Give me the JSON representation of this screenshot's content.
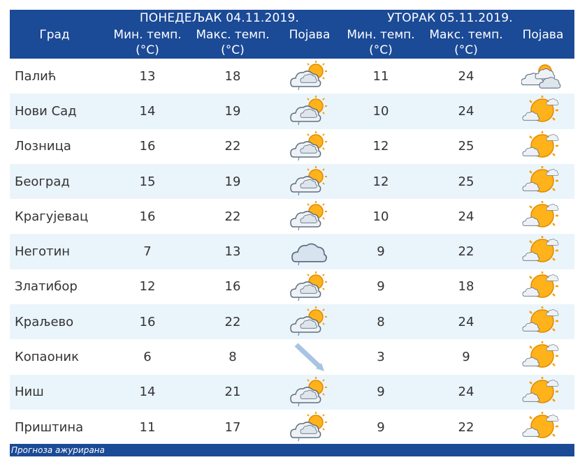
{
  "header": {
    "city_label": "Град",
    "days": [
      {
        "title": "ПОНЕДЕЉАК  04.11.2019.",
        "min_label": "Мин. темп.",
        "max_label": "Макс. темп.",
        "unit": "(°C)",
        "icon_label": "Појава"
      },
      {
        "title": "УТОРАК  05.11.2019.",
        "min_label": "Мин. темп.",
        "max_label": "Макс. темп.",
        "unit": "(°C)",
        "icon_label": "Појава"
      }
    ]
  },
  "rows": [
    {
      "city": "Палић",
      "d1_min": "13",
      "d1_max": "18",
      "d1_icon": "cloud-sun-rain-icon",
      "d2_min": "11",
      "d2_max": "24",
      "d2_icon": "clouds-sun-icon"
    },
    {
      "city": "Нови Сад",
      "d1_min": "14",
      "d1_max": "19",
      "d1_icon": "cloud-sun-rain-icon",
      "d2_min": "10",
      "d2_max": "24",
      "d2_icon": "sun-cloud-icon"
    },
    {
      "city": "Лозница",
      "d1_min": "16",
      "d1_max": "22",
      "d1_icon": "cloud-sun-rain-icon",
      "d2_min": "12",
      "d2_max": "25",
      "d2_icon": "sun-cloud-icon"
    },
    {
      "city": "Београд",
      "d1_min": "15",
      "d1_max": "19",
      "d1_icon": "cloud-sun-rain-icon",
      "d2_min": "12",
      "d2_max": "25",
      "d2_icon": "sun-cloud-icon"
    },
    {
      "city": "Крагујевац",
      "d1_min": "16",
      "d1_max": "22",
      "d1_icon": "cloud-sun-rain-icon",
      "d2_min": "10",
      "d2_max": "24",
      "d2_icon": "sun-cloud-icon"
    },
    {
      "city": "Неготин",
      "d1_min": "7",
      "d1_max": "13",
      "d1_icon": "cloud-rain-icon",
      "d2_min": "9",
      "d2_max": "22",
      "d2_icon": "sun-cloud-icon"
    },
    {
      "city": "Златибор",
      "d1_min": "12",
      "d1_max": "16",
      "d1_icon": "cloud-sun-rain-icon",
      "d2_min": "9",
      "d2_max": "18",
      "d2_icon": "sun-cloud-icon"
    },
    {
      "city": "Краљево",
      "d1_min": "16",
      "d1_max": "22",
      "d1_icon": "cloud-sun-rain-icon",
      "d2_min": "8",
      "d2_max": "24",
      "d2_icon": "sun-cloud-icon"
    },
    {
      "city": "Копаоник",
      "d1_min": "6",
      "d1_max": "8",
      "d1_icon": "wind-arrow-icon",
      "d2_min": "3",
      "d2_max": "9",
      "d2_icon": "sun-cloud-icon"
    },
    {
      "city": "Ниш",
      "d1_min": "14",
      "d1_max": "21",
      "d1_icon": "cloud-sun-rain-icon",
      "d2_min": "9",
      "d2_max": "24",
      "d2_icon": "sun-cloud-icon"
    },
    {
      "city": "Приштина",
      "d1_min": "11",
      "d1_max": "17",
      "d1_icon": "cloud-sun-rain-icon",
      "d2_min": "9",
      "d2_max": "22",
      "d2_icon": "sun-cloud-icon"
    }
  ],
  "footer": {
    "text": "Прогноза ажурирана"
  },
  "colors": {
    "header_bg": "#1b4a96",
    "row_alt": "#eaf4fb",
    "text": "#333333"
  }
}
